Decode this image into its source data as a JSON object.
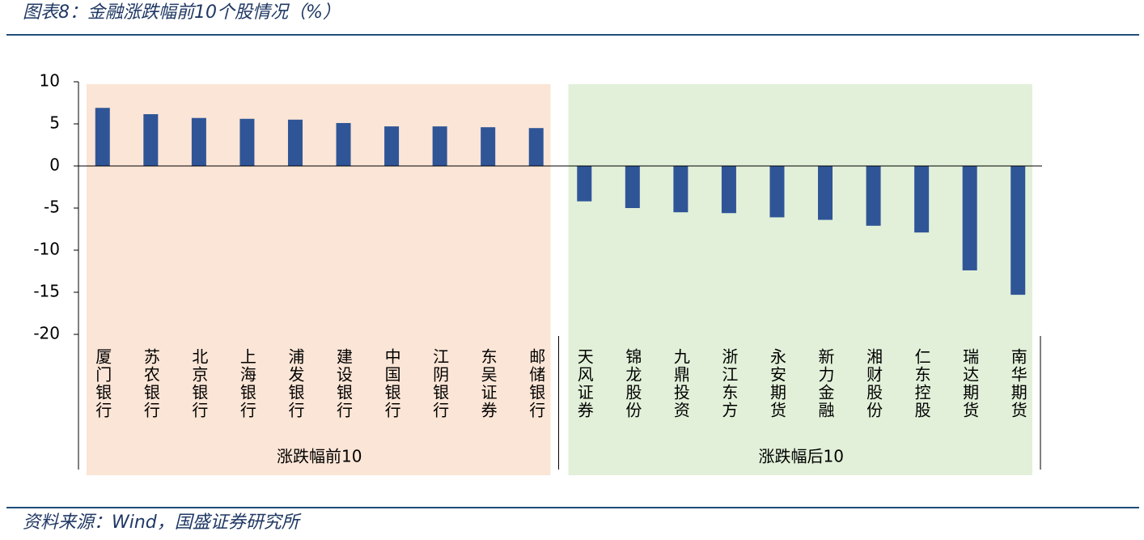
{
  "title": "图表8：金融涨跌幅前10个股情况（%）",
  "source": "资料来源：Wind，国盛证券研究所",
  "chart_data": {
    "type": "bar",
    "color": "#2f5597",
    "groups": [
      {
        "name": "涨跌幅前10",
        "color": "#fbe5d6",
        "categories": [
          "厦门银行",
          "苏农银行",
          "北京银行",
          "上海银行",
          "浦发银行",
          "建设银行",
          "中国银行",
          "江阴银行",
          "东吴证券",
          "邮储银行"
        ],
        "values": [
          6.9,
          6.15,
          5.7,
          5.6,
          5.5,
          5.1,
          4.7,
          4.7,
          4.6,
          4.5
        ]
      },
      {
        "name": "涨跌幅后10",
        "color": "#e2f0d9",
        "categories": [
          "天风证券",
          "锦龙股份",
          "九鼎投资",
          "浙江东方",
          "永安期货",
          "新力金融",
          "湘财股份",
          "仁东控股",
          "瑞达期货",
          "南华期货"
        ],
        "values": [
          -4.2,
          -5.0,
          -5.5,
          -5.6,
          -6.1,
          -6.4,
          -7.1,
          -7.9,
          -12.4,
          -15.3
        ]
      }
    ],
    "ylim": [
      -20,
      10
    ],
    "yticks": [
      -20,
      -15,
      -10,
      -5,
      0,
      5,
      10
    ]
  }
}
